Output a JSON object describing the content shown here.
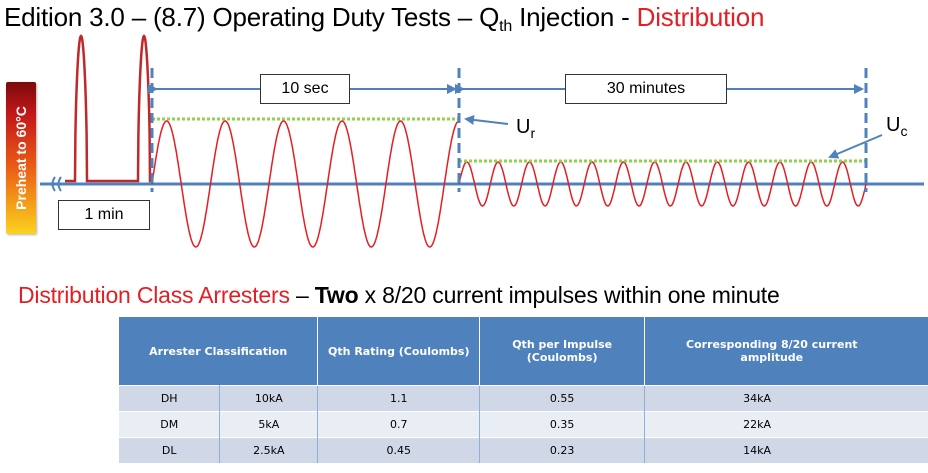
{
  "header": {
    "title_prefix": "Edition 3.0 – (8.7) Operating Duty Tests – Q",
    "title_sub": "th",
    "title_mid": " Injection - ",
    "title_accent": "Distribution"
  },
  "diagram": {
    "preheat_label": "Preheat to 60°C",
    "min_label": "1 min",
    "sec_label": "10 sec",
    "minutes_label": "30 minutes",
    "ur_label": "U",
    "ur_sub": "r",
    "uc_label": "U",
    "uc_sub": "c",
    "colors": {
      "wave": "#e31e24",
      "axis": "#4f81bd",
      "level": "#92d050"
    }
  },
  "section": {
    "red_text": "Distribution Class Arresters",
    "dash": " – ",
    "bold_text": "Two",
    "rest_text": " x 8/20 current impulses within one minute"
  },
  "table": {
    "headers": [
      "Arrester Classification",
      "Qth Rating (Coulombs)",
      "Qth per Impulse (Coulombs)",
      "Corresponding 8/20 current amplitude"
    ],
    "rows": [
      [
        "DH",
        "10kA",
        "1.1",
        "0.55",
        "34kA"
      ],
      [
        "DM",
        "5kA",
        "0.7",
        "0.35",
        "22kA"
      ],
      [
        "DL",
        "2.5kA",
        "0.45",
        "0.23",
        "14kA"
      ]
    ],
    "colors": {
      "header": "#4f81bd",
      "row_odd": "#d0d8e8",
      "row_even": "#e9edf4"
    }
  }
}
